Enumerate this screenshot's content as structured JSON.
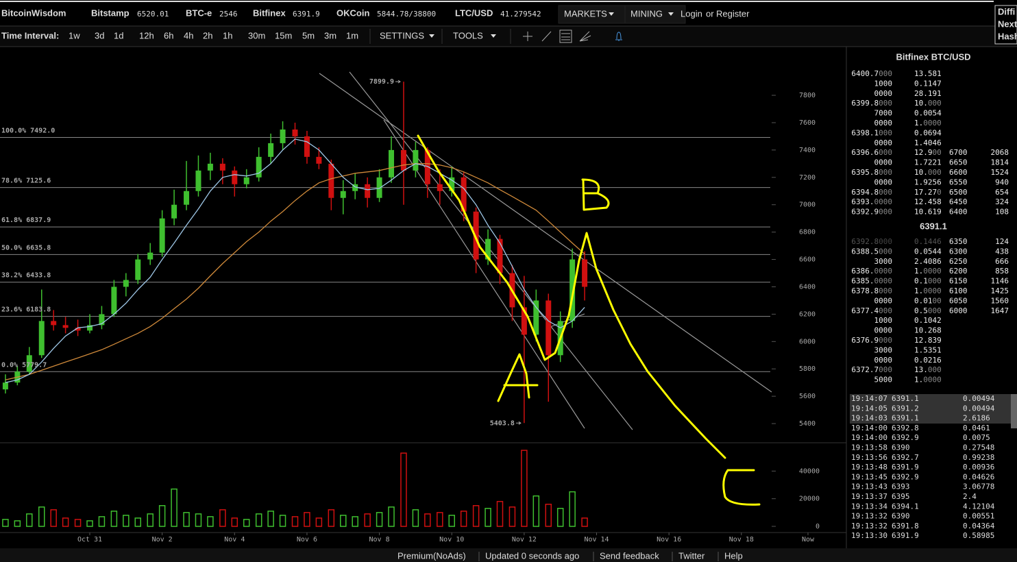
{
  "topbar": {
    "brand": "BitcoinWisdom",
    "tickers": [
      {
        "name": "Bitstamp",
        "price": "6520.01"
      },
      {
        "name": "BTC-e",
        "price": "2546"
      },
      {
        "name": "Bitfinex",
        "price": "6391.9"
      },
      {
        "name": "OKCoin",
        "price": "5844.78/38800"
      },
      {
        "name": "LTC/USD",
        "price": "41.279542"
      }
    ],
    "menus": [
      "MARKETS",
      "MINING"
    ],
    "login": "Login",
    "or": "or",
    "register": "Register",
    "side": [
      "Diffi",
      "Next",
      "Hash"
    ]
  },
  "toolbar": {
    "label": "Time Interval:",
    "intervals": [
      "1w",
      "3d",
      "1d",
      "12h",
      "6h",
      "4h",
      "2h",
      "1h",
      "30m",
      "15m",
      "5m",
      "3m",
      "1m"
    ],
    "active_index": 5,
    "menus": [
      "SETTINGS",
      "TOOLS"
    ]
  },
  "chart_data": {
    "type": "candlestick",
    "x": [
      -2.33,
      -2,
      -1.67,
      -1.33,
      -1,
      -0.67,
      -0.33,
      0,
      0.33,
      0.67,
      1,
      1.33,
      1.67,
      2,
      2.33,
      2.67,
      3,
      3.33,
      3.67,
      4,
      4.33,
      4.67,
      5,
      5.33,
      5.67,
      6,
      6.33,
      6.67,
      7,
      7.33,
      7.67,
      8,
      8.33,
      8.67,
      9,
      9.33,
      9.67,
      10,
      10.33,
      10.67,
      11,
      11.33,
      11.67,
      12,
      12.33,
      12.67,
      13,
      13.33,
      13.67
    ],
    "candles": [
      [
        5650,
        5760,
        5620,
        5700
      ],
      [
        5700,
        5820,
        5680,
        5780
      ],
      [
        5780,
        5960,
        5760,
        5900
      ],
      [
        5900,
        6380,
        5880,
        6150
      ],
      [
        6150,
        6230,
        6080,
        6120
      ],
      [
        6120,
        6180,
        6060,
        6100
      ],
      [
        6100,
        6160,
        6040,
        6080
      ],
      [
        6080,
        6200,
        6060,
        6120
      ],
      [
        6120,
        6260,
        6090,
        6200
      ],
      [
        6200,
        6450,
        6180,
        6400
      ],
      [
        6400,
        6500,
        6330,
        6450
      ],
      [
        6450,
        6640,
        6420,
        6600
      ],
      [
        6600,
        6720,
        6560,
        6650
      ],
      [
        6650,
        6960,
        6620,
        6900
      ],
      [
        6900,
        7110,
        6850,
        7000
      ],
      [
        7000,
        7320,
        6960,
        7100
      ],
      [
        7100,
        7360,
        7060,
        7250
      ],
      [
        7250,
        7380,
        7180,
        7300
      ],
      [
        7300,
        7340,
        7150,
        7250
      ],
      [
        7250,
        7280,
        7060,
        7150
      ],
      [
        7150,
        7260,
        7120,
        7200
      ],
      [
        7200,
        7420,
        7170,
        7350
      ],
      [
        7350,
        7520,
        7300,
        7450
      ],
      [
        7450,
        7610,
        7400,
        7550
      ],
      [
        7550,
        7600,
        7440,
        7500
      ],
      [
        7500,
        7540,
        7300,
        7350
      ],
      [
        7350,
        7420,
        7260,
        7300
      ],
      [
        7300,
        7330,
        6960,
        7050
      ],
      [
        7050,
        7180,
        6930,
        7100
      ],
      [
        7100,
        7230,
        7040,
        7150
      ],
      [
        7150,
        7200,
        6980,
        7050
      ],
      [
        7050,
        7260,
        7020,
        7200
      ],
      [
        7200,
        7500,
        7160,
        7400
      ],
      [
        7400,
        7899.9,
        7000,
        7250
      ],
      [
        7250,
        7460,
        7200,
        7400
      ],
      [
        7400,
        7420,
        7050,
        7150
      ],
      [
        7150,
        7260,
        7000,
        7100
      ],
      [
        7100,
        7280,
        7060,
        7200
      ],
      [
        7200,
        7240,
        6880,
        6950
      ],
      [
        6950,
        6980,
        6500,
        6600
      ],
      [
        6600,
        6820,
        6560,
        6750
      ],
      [
        6750,
        6780,
        6420,
        6500
      ],
      [
        6500,
        6560,
        6150,
        6250
      ],
      [
        6250,
        6480,
        5403.8,
        6050
      ],
      [
        6050,
        6380,
        6000,
        6300
      ],
      [
        6300,
        6350,
        5560,
        5900
      ],
      [
        5900,
        6220,
        5850,
        6150
      ],
      [
        6150,
        6680,
        6100,
        6600
      ],
      [
        6600,
        6660,
        6300,
        6400
      ]
    ],
    "volumes": [
      5000,
      4000,
      9000,
      14000,
      12000,
      6000,
      5000,
      4000,
      7000,
      11000,
      8000,
      6000,
      9000,
      15000,
      27000,
      10000,
      9000,
      7000,
      12000,
      6000,
      5000,
      9000,
      11000,
      8000,
      7000,
      10000,
      6000,
      12000,
      8000,
      7000,
      9000,
      10000,
      14000,
      53000,
      12000,
      9000,
      10000,
      8000,
      11000,
      15000,
      13000,
      18000,
      14000,
      55000,
      22000,
      16000,
      13000,
      25000,
      6000
    ],
    "ma_fast": [
      5700,
      5720,
      5760,
      5850,
      5950,
      6040,
      6100,
      6110,
      6130,
      6200,
      6280,
      6380,
      6470,
      6600,
      6720,
      6850,
      6970,
      7100,
      7200,
      7220,
      7210,
      7230,
      7300,
      7400,
      7480,
      7460,
      7400,
      7300,
      7200,
      7130,
      7110,
      7120,
      7180,
      7250,
      7300,
      7280,
      7230,
      7180,
      7120,
      7000,
      6850,
      6720,
      6550,
      6380,
      6250,
      6150,
      6100,
      6150,
      6250
    ],
    "ma_slow": [
      5720,
      5740,
      5760,
      5790,
      5820,
      5850,
      5880,
      5910,
      5940,
      5980,
      6020,
      6060,
      6110,
      6170,
      6240,
      6310,
      6390,
      6480,
      6570,
      6650,
      6730,
      6800,
      6880,
      6950,
      7030,
      7100,
      7160,
      7190,
      7210,
      7230,
      7240,
      7250,
      7270,
      7290,
      7300,
      7300,
      7290,
      7270,
      7240,
      7200,
      7160,
      7110,
      7060,
      7010,
      6960,
      6880,
      6800,
      6720,
      6640
    ],
    "up_color": "#3fbf2f",
    "down_color": "#d01010",
    "ma_fast_color": "#9fc8e8",
    "ma_slow_color": "#d08a3a",
    "xlim": [
      -2.48,
      20.9
    ],
    "xticks": [
      {
        "value": 0,
        "label": "Oct 31"
      },
      {
        "value": 2,
        "label": "Nov 2"
      },
      {
        "value": 4,
        "label": "Nov 4"
      },
      {
        "value": 6,
        "label": "Nov 6"
      },
      {
        "value": 8,
        "label": "Nov 8"
      },
      {
        "value": 10,
        "label": "Nov 10"
      },
      {
        "value": 12,
        "label": "Nov 12"
      },
      {
        "value": 14,
        "label": "Nov 14"
      },
      {
        "value": 16,
        "label": "Nov 16"
      },
      {
        "value": 18,
        "label": "Nov 18"
      },
      {
        "value": 19.84,
        "label": "Now"
      }
    ],
    "ylim": [
      5260,
      8146
    ],
    "yticks": [
      5400,
      5600,
      5800,
      6000,
      6200,
      6400,
      6600,
      6800,
      7000,
      7200,
      7400,
      7600,
      7800
    ],
    "vlim": [
      0,
      60000
    ],
    "vticks": [
      0,
      20000,
      40000
    ],
    "fib_levels": [
      {
        "value": 7492,
        "label": "100.0% 7492.0"
      },
      {
        "value": 7125.6,
        "label": "78.6% 7125.6"
      },
      {
        "value": 6837.9,
        "label": "61.8% 6837.9"
      },
      {
        "value": 6635.8,
        "label": "50.0% 6635.8"
      },
      {
        "value": 6433.8,
        "label": "38.2% 6433.8"
      },
      {
        "value": 6183.8,
        "label": "23.6% 6183.8"
      },
      {
        "value": 5779.7,
        "label": "0.0% 5779.7"
      }
    ],
    "annotations": [
      "7899.9",
      "5403.8"
    ]
  },
  "orderbook": {
    "title": "Bitfinex BTC/USD",
    "asks": [
      [
        "6400.7000",
        "13.581"
      ],
      [
        "1000",
        "0.1147"
      ],
      [
        "0000",
        "28.191"
      ],
      [
        "6399.8000",
        "10.000"
      ],
      [
        "7000",
        "0.0054"
      ],
      [
        "0000",
        "1.0000"
      ],
      [
        "6398.1000",
        "0.0694"
      ],
      [
        "0000",
        "1.4046"
      ],
      [
        "6396.6000",
        "12.900",
        "6700",
        "2068"
      ],
      [
        "0000",
        "1.7221",
        "6650",
        "1814"
      ],
      [
        "6395.8000",
        "10.000",
        "6600",
        "1524"
      ],
      [
        "0000",
        "1.9256",
        "6550",
        "940"
      ],
      [
        "6394.8000",
        "17.270",
        "6500",
        "654"
      ],
      [
        "6393.0000",
        "12.458",
        "6450",
        "324"
      ],
      [
        "6392.9000",
        "10.619",
        "6400",
        "108"
      ]
    ],
    "last": "6391.1",
    "bids": [
      [
        "6392.8000",
        "0.1446",
        "6350",
        "124"
      ],
      [
        "6388.5000",
        "0.0544",
        "6300",
        "438"
      ],
      [
        "3000",
        "2.4086",
        "6250",
        "666"
      ],
      [
        "6386.0000",
        "1.0000",
        "6200",
        "858"
      ],
      [
        "6385.0000",
        "0.1000",
        "6150",
        "1146"
      ],
      [
        "6378.8000",
        "1.0000",
        "6100",
        "1425"
      ],
      [
        "0000",
        "0.0100",
        "6050",
        "1560"
      ],
      [
        "6377.4000",
        "0.5000",
        "6000",
        "1647"
      ],
      [
        "1000",
        "0.1042"
      ],
      [
        "0000",
        "10.268"
      ],
      [
        "6376.9000",
        "12.839"
      ],
      [
        "3000",
        "1.5351"
      ],
      [
        "0000",
        "0.0216"
      ],
      [
        "6372.7000",
        "13.000"
      ],
      [
        "5000",
        "1.0000"
      ]
    ]
  },
  "trades": [
    {
      "time": "19:14:07",
      "price": "6391.1",
      "amount": "0.00494",
      "color": "#5fd35f"
    },
    {
      "time": "19:14:05",
      "price": "6391.2",
      "amount": "0.00494",
      "color": "#5fd35f"
    },
    {
      "time": "19:14:03",
      "price": "6391.1",
      "amount": "2.6186",
      "color": "#5fd35f"
    },
    {
      "time": "19:14:00",
      "price": "6392.8",
      "amount": "0.0461",
      "color": "#e04040"
    },
    {
      "time": "19:14:00",
      "price": "6392.9",
      "amount": "0.0075",
      "color": "#5fd35f"
    },
    {
      "time": "19:13:58",
      "price": "6390",
      "amount": "0.27548",
      "color": "#e04040"
    },
    {
      "time": "19:13:56",
      "price": "6392.7",
      "amount": "0.99238",
      "color": "#e04040"
    },
    {
      "time": "19:13:48",
      "price": "6391.9",
      "amount": "0.00936",
      "color": "#e04040"
    },
    {
      "time": "19:13:45",
      "price": "6392.9",
      "amount": "0.04626",
      "color": "#5fd35f"
    },
    {
      "time": "19:13:43",
      "price": "6393",
      "amount": "3.06778",
      "color": "#5fd35f"
    },
    {
      "time": "19:13:37",
      "price": "6395",
      "amount": "2.4",
      "color": "#5fd35f"
    },
    {
      "time": "19:13:34",
      "price": "6394.1",
      "amount": "4.12104",
      "color": "#5fd35f"
    },
    {
      "time": "19:13:32",
      "price": "6390",
      "amount": "0.00551",
      "color": "#e04040"
    },
    {
      "time": "19:13:32",
      "price": "6391.8",
      "amount": "0.04364",
      "color": "#5fd35f"
    },
    {
      "time": "19:13:30",
      "price": "6391.9",
      "amount": "0.58985",
      "color": "#5fd35f"
    }
  ],
  "footer": [
    "Premium(NoAds)",
    "Updated 0 seconds ago",
    "Send feedback",
    "Twitter",
    "Help"
  ]
}
